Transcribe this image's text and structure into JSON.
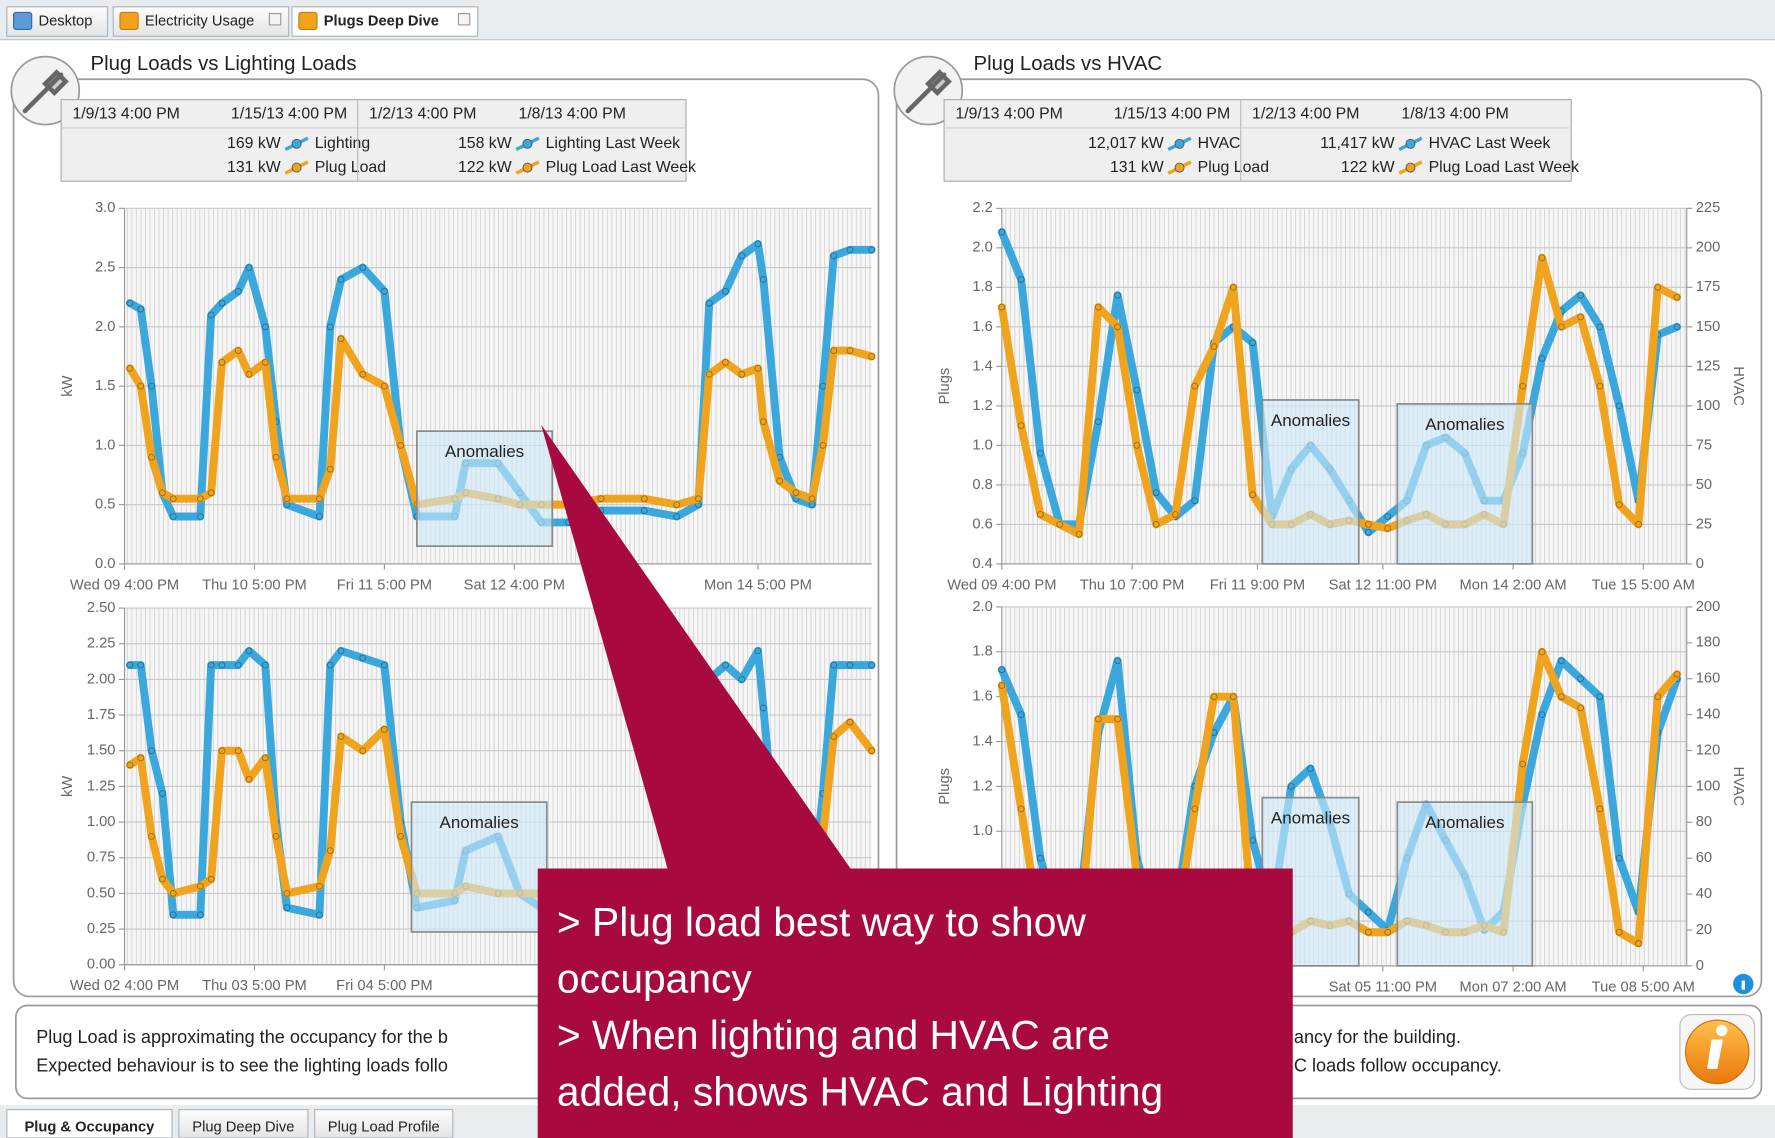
{
  "tabs": [
    "Desktop",
    "Electricity Usage",
    "Plugs Deep Dive"
  ],
  "bottom_tabs": [
    "Plug & Occupancy",
    "Plug Deep Dive",
    "Plug Load Profile"
  ],
  "panels": [
    {
      "title": "Plug Loads vs Lighting Loads",
      "legend": {
        "columns": [
          {
            "dates": [
              "1/9/13 4:00 PM",
              "1/15/13 4:00 PM"
            ],
            "rows": [
              {
                "value": "169 kW",
                "label": "Lighting",
                "color": "#3aa8dd"
              },
              {
                "value": "131 kW",
                "label": "Plug Load",
                "color": "#f0a31c"
              }
            ]
          },
          {
            "dates": [
              "1/2/13 4:00 PM",
              "1/8/13 4:00 PM"
            ],
            "rows": [
              {
                "value": "158 kW",
                "label": "Lighting Last Week",
                "color": "#3aa8dd"
              },
              {
                "value": "122 kW",
                "label": "Plug Load Last Week",
                "color": "#f0a31c"
              }
            ]
          }
        ]
      }
    },
    {
      "title": "Plug Loads vs HVAC",
      "legend": {
        "columns": [
          {
            "dates": [
              "1/9/13 4:00 PM",
              "1/15/13 4:00 PM"
            ],
            "rows": [
              {
                "value": "12,017 kW",
                "label": "HVAC",
                "color": "#3aa8dd"
              },
              {
                "value": "131 kW",
                "label": "Plug Load",
                "color": "#f0a31c"
              }
            ]
          },
          {
            "dates": [
              "1/2/13 4:00 PM",
              "1/8/13 4:00 PM"
            ],
            "rows": [
              {
                "value": "11,417 kW",
                "label": "HVAC Last Week",
                "color": "#3aa8dd"
              },
              {
                "value": "122 kW",
                "label": "Plug Load Last Week",
                "color": "#f0a31c"
              }
            ]
          }
        ]
      }
    }
  ],
  "chart_data": [
    {
      "type": "line",
      "ylabel": "kW",
      "x": [
        1,
        3,
        5,
        7,
        9,
        14,
        16,
        18,
        21,
        23,
        26,
        28,
        30,
        36,
        38,
        40,
        44,
        48,
        51,
        54,
        61,
        63,
        69,
        73,
        77,
        82,
        88,
        96,
        102,
        106,
        108,
        111,
        114,
        117,
        118,
        121,
        124,
        127,
        129,
        131,
        134,
        138
      ],
      "xlim": [
        0,
        138
      ],
      "xticks": [
        {
          "value": 0,
          "label": "Wed 09 4:00 PM"
        },
        {
          "value": 24,
          "label": "Thu 10 5:00 PM"
        },
        {
          "value": 48,
          "label": "Fri 11 5:00 PM"
        },
        {
          "value": 72,
          "label": "Sat 12 4:00 PM"
        },
        {
          "value": 117,
          "label": "Mon 14 5:00 PM"
        }
      ],
      "ylim": [
        0,
        3
      ],
      "yticks": [
        {
          "value": 0,
          "label": "0.0"
        },
        0.5,
        {
          "value": 1,
          "label": "1.0"
        },
        1.5,
        {
          "value": 2,
          "label": "2.0"
        },
        2.5,
        {
          "value": 3,
          "label": "3.0"
        }
      ],
      "grid": true,
      "series": [
        {
          "color": "#3aa8dd",
          "values": [
            2.2,
            2.15,
            1.5,
            0.6,
            0.4,
            0.4,
            2.1,
            2.2,
            2.3,
            2.5,
            2.0,
            1.2,
            0.5,
            0.4,
            2.0,
            2.4,
            2.5,
            2.3,
            1.0,
            0.4,
            0.4,
            0.85,
            0.85,
            0.6,
            0.35,
            0.35,
            0.45,
            0.45,
            0.4,
            0.5,
            2.2,
            2.3,
            2.6,
            2.7,
            2.4,
            0.9,
            0.55,
            0.5,
            1.5,
            2.6,
            2.65,
            2.65
          ]
        },
        {
          "color": "#f0a31c",
          "values": [
            1.65,
            1.5,
            0.9,
            0.6,
            0.55,
            0.55,
            0.6,
            1.7,
            1.8,
            1.6,
            1.7,
            0.9,
            0.55,
            0.55,
            0.8,
            1.9,
            1.6,
            1.5,
            1.0,
            0.5,
            0.55,
            0.6,
            0.55,
            0.5,
            0.5,
            0.5,
            0.55,
            0.55,
            0.5,
            0.55,
            1.6,
            1.7,
            1.6,
            1.65,
            1.2,
            0.7,
            0.6,
            0.55,
            1.0,
            1.8,
            1.8,
            1.75
          ]
        }
      ],
      "annotations": [
        {
          "text": "Anomalies",
          "x0": 54,
          "x1": 79,
          "y0": 0.15,
          "y1": 1.12
        }
      ]
    },
    {
      "type": "line",
      "ylabel": "kW",
      "x": [
        1,
        3,
        5,
        7,
        9,
        14,
        16,
        18,
        21,
        23,
        26,
        28,
        30,
        36,
        38,
        40,
        44,
        48,
        51,
        54,
        61,
        63,
        69,
        73,
        77,
        82,
        88,
        96,
        102,
        106,
        108,
        111,
        114,
        117,
        118,
        121,
        124,
        127,
        129,
        131,
        134,
        138
      ],
      "xlim": [
        0,
        138
      ],
      "xticks": [
        {
          "value": 0,
          "label": "Wed 02 4:00 PM"
        },
        {
          "value": 24,
          "label": "Thu 03 5:00 PM"
        },
        {
          "value": 48,
          "label": "Fri 04 5:00 PM"
        }
      ],
      "ylim": [
        0,
        2.5
      ],
      "yticks": [
        {
          "value": 0,
          "label": "0.00"
        },
        {
          "value": 0.25,
          "label": "0.25"
        },
        {
          "value": 0.5,
          "label": "0.50"
        },
        {
          "value": 0.75,
          "label": "0.75"
        },
        {
          "value": 1,
          "label": "1.00"
        },
        {
          "value": 1.25,
          "label": "1.25"
        },
        {
          "value": 1.5,
          "label": "1.50"
        },
        {
          "value": 1.75,
          "label": "1.75"
        },
        {
          "value": 2,
          "label": "2.00"
        },
        {
          "value": 2.25,
          "label": "2.25"
        },
        {
          "value": 2.5,
          "label": "2.50"
        }
      ],
      "grid": true,
      "series": [
        {
          "color": "#3aa8dd",
          "values": [
            2.1,
            2.1,
            1.5,
            1.2,
            0.35,
            0.35,
            2.1,
            2.1,
            2.1,
            2.2,
            2.1,
            1.0,
            0.4,
            0.35,
            2.1,
            2.2,
            2.15,
            2.1,
            1.0,
            0.4,
            0.45,
            0.8,
            0.9,
            0.5,
            0.4,
            0.4,
            0.4,
            0.4,
            0.4,
            0.45,
            2.0,
            2.1,
            2.0,
            2.2,
            1.8,
            0.6,
            0.5,
            0.5,
            1.2,
            2.1,
            2.1,
            2.1
          ]
        },
        {
          "color": "#f0a31c",
          "values": [
            1.4,
            1.45,
            0.9,
            0.6,
            0.5,
            0.55,
            0.6,
            1.5,
            1.5,
            1.3,
            1.45,
            0.9,
            0.5,
            0.55,
            0.8,
            1.6,
            1.5,
            1.65,
            0.9,
            0.5,
            0.5,
            0.55,
            0.5,
            0.5,
            0.5,
            0.5,
            0.5,
            0.5,
            0.5,
            0.5,
            1.3,
            1.5,
            1.4,
            1.5,
            1.1,
            0.6,
            0.55,
            0.5,
            0.9,
            1.6,
            1.7,
            1.5
          ]
        }
      ],
      "annotations": [
        {
          "text": "Anomalies",
          "x0": 53,
          "x1": 78,
          "y0": 0.23,
          "y1": 1.14
        }
      ]
    },
    {
      "type": "line",
      "ylabel": "Plugs",
      "y2label": "HVAC",
      "x": [
        0,
        4,
        8,
        12,
        16,
        20,
        24,
        28,
        32,
        36,
        40,
        44,
        48,
        52,
        56,
        60,
        64,
        68,
        72,
        76,
        80,
        84,
        88,
        92,
        96,
        100,
        104,
        108,
        112,
        116,
        120,
        124,
        128,
        132,
        136,
        140
      ],
      "xlim": [
        0,
        142
      ],
      "xticks": [
        {
          "value": 0,
          "label": "Wed 09 4:00 PM"
        },
        {
          "value": 27,
          "label": "Thu 10 7:00 PM"
        },
        {
          "value": 53,
          "label": "Fri 11 9:00 PM"
        },
        {
          "value": 79,
          "label": "Sat 12 11:00 PM"
        },
        {
          "value": 106,
          "label": "Mon 14 2:00 AM"
        },
        {
          "value": 133,
          "label": "Tue 15 5:00 AM"
        }
      ],
      "ylim": [
        0.4,
        2.2
      ],
      "yticks": [
        0.4,
        0.6,
        0.8,
        {
          "value": 1,
          "label": "1.0"
        },
        1.2,
        1.4,
        1.6,
        1.8,
        {
          "value": 2,
          "label": "2.0"
        },
        2.2
      ],
      "y2lim": [
        0,
        225
      ],
      "y2ticks": [
        0,
        25,
        50,
        75,
        100,
        125,
        150,
        175,
        200,
        225
      ],
      "grid": true,
      "series": [
        {
          "color": "#3aa8dd",
          "axis": "y2",
          "values": [
            210,
            180,
            70,
            25,
            25,
            90,
            170,
            110,
            45,
            30,
            40,
            140,
            150,
            140,
            30,
            60,
            75,
            60,
            40,
            20,
            30,
            40,
            75,
            80,
            70,
            40,
            40,
            70,
            130,
            160,
            170,
            150,
            100,
            40,
            145,
            150
          ]
        },
        {
          "color": "#f0a31c",
          "values": [
            1.7,
            1.1,
            0.65,
            0.6,
            0.55,
            1.7,
            1.6,
            1.0,
            0.6,
            0.65,
            1.3,
            1.5,
            1.8,
            0.75,
            0.6,
            0.6,
            0.65,
            0.6,
            0.62,
            0.6,
            0.58,
            0.62,
            0.65,
            0.6,
            0.6,
            0.65,
            0.6,
            1.3,
            1.95,
            1.6,
            1.65,
            1.3,
            0.7,
            0.6,
            1.8,
            1.75
          ]
        }
      ],
      "annotations": [
        {
          "text": "Anomalies",
          "x0": 54,
          "x1": 74,
          "y0": 0.4,
          "y1": 1.23
        },
        {
          "text": "Anomalies",
          "x0": 82,
          "x1": 110,
          "y0": 0.4,
          "y1": 1.21
        }
      ]
    },
    {
      "type": "line",
      "ylabel": "Plugs",
      "y2label": "HVAC",
      "x": [
        0,
        4,
        8,
        12,
        16,
        20,
        24,
        28,
        32,
        36,
        40,
        44,
        48,
        52,
        56,
        60,
        64,
        68,
        72,
        76,
        80,
        84,
        88,
        92,
        96,
        100,
        104,
        108,
        112,
        116,
        120,
        124,
        128,
        132,
        136,
        140
      ],
      "xlim": [
        0,
        142
      ],
      "xticks": [
        {
          "value": 79,
          "label": "Sat 05 11:00 PM"
        },
        {
          "value": 106,
          "label": "Mon 07 2:00 AM"
        },
        {
          "value": 133,
          "label": "Tue 08 5:00 AM"
        }
      ],
      "ylim": [
        0.4,
        2.0
      ],
      "yticks": [
        0.4,
        0.6,
        0.8,
        {
          "value": 1,
          "label": "1.0"
        },
        1.2,
        1.4,
        1.6,
        1.8,
        {
          "value": 2,
          "label": "2.0"
        }
      ],
      "y2lim": [
        0,
        200
      ],
      "y2ticks": [
        0,
        20,
        40,
        60,
        80,
        100,
        120,
        140,
        160,
        180,
        200
      ],
      "grid": true,
      "series": [
        {
          "color": "#3aa8dd",
          "axis": "y2",
          "values": [
            165,
            140,
            60,
            20,
            30,
            130,
            170,
            60,
            20,
            30,
            100,
            130,
            150,
            70,
            30,
            100,
            110,
            80,
            40,
            30,
            20,
            60,
            90,
            70,
            50,
            20,
            30,
            90,
            140,
            170,
            160,
            150,
            60,
            30,
            130,
            160
          ]
        },
        {
          "color": "#f0a31c",
          "values": [
            1.65,
            1.1,
            0.55,
            0.5,
            0.5,
            1.5,
            1.5,
            0.8,
            0.5,
            0.55,
            1.1,
            1.6,
            1.6,
            0.6,
            0.55,
            0.55,
            0.6,
            0.58,
            0.6,
            0.55,
            0.55,
            0.6,
            0.58,
            0.55,
            0.55,
            0.58,
            0.55,
            1.3,
            1.8,
            1.6,
            1.55,
            1.1,
            0.55,
            0.5,
            1.6,
            1.7
          ]
        }
      ],
      "annotations": [
        {
          "text": "Anomalies",
          "x0": 54,
          "x1": 74,
          "y0": 0.4,
          "y1": 1.15
        },
        {
          "text": "Anomalies",
          "x0": 82,
          "x1": 110,
          "y0": 0.4,
          "y1": 1.13
        }
      ]
    }
  ],
  "description": {
    "lines": [
      {
        "left": "Plug Load is approximating the occupancy for the b",
        "right": "ancy for the building."
      },
      {
        "left": "Expected behaviour is to see the lighting loads follo",
        "right": "C loads follow occupancy."
      }
    ]
  },
  "callout": {
    "lines": [
      "> Plug load best way to show",
      "occupancy",
      "> When lighting and HVAC are",
      "added, shows HVAC and Lighting"
    ]
  }
}
